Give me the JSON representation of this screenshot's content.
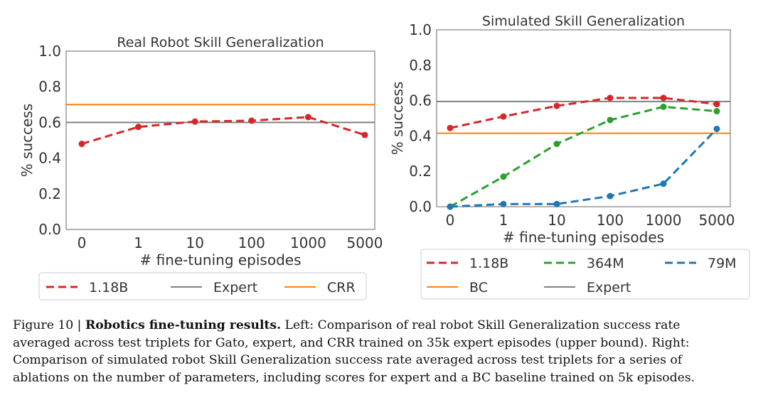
{
  "chart_data": [
    {
      "type": "line",
      "title": "Real Robot Skill Generalization",
      "xlabel": "# fine-tuning episodes",
      "ylabel": "% success",
      "categories": [
        "0",
        "1",
        "10",
        "100",
        "1000",
        "5000"
      ],
      "yticks": [
        "0.0",
        "0.2",
        "0.4",
        "0.6",
        "0.8",
        "1.0"
      ],
      "ylim": [
        0,
        1.0
      ],
      "grid": false,
      "series": [
        {
          "name": "1.18B",
          "color": "#d62728",
          "style": "dashed",
          "values": [
            0.48,
            0.575,
            0.605,
            0.61,
            0.63,
            0.53
          ]
        }
      ],
      "hlines": [
        {
          "name": "Expert",
          "color": "#7f7f7f",
          "value": 0.6
        },
        {
          "name": "CRR",
          "color": "#ff7f0e",
          "value": 0.7
        }
      ],
      "legend": [
        "1.18B",
        "Expert",
        "CRR"
      ],
      "legend_placement": "bottom"
    },
    {
      "type": "line",
      "title": "Simulated Skill Generalization",
      "xlabel": "# fine-tuning episodes",
      "ylabel": "% success",
      "categories": [
        "0",
        "1",
        "10",
        "100",
        "1000",
        "5000"
      ],
      "yticks": [
        "0.0",
        "0.2",
        "0.4",
        "0.6",
        "0.8",
        "1.0"
      ],
      "ylim": [
        0,
        1.0
      ],
      "grid": false,
      "series": [
        {
          "name": "1.18B",
          "color": "#d62728",
          "style": "dashed",
          "values": [
            0.445,
            0.51,
            0.57,
            0.615,
            0.615,
            0.58
          ]
        },
        {
          "name": "364M",
          "color": "#2ca02c",
          "style": "dashed",
          "values": [
            0.0,
            0.17,
            0.355,
            0.49,
            0.565,
            0.54
          ]
        },
        {
          "name": "79M",
          "color": "#1f77b4",
          "style": "dashed",
          "values": [
            0.0,
            0.015,
            0.015,
            0.06,
            0.13,
            0.44
          ]
        }
      ],
      "hlines": [
        {
          "name": "BC",
          "color": "#ff7f0e",
          "value": 0.415
        },
        {
          "name": "Expert",
          "color": "#7f7f7f",
          "value": 0.595
        }
      ],
      "legend": [
        "1.18B",
        "364M",
        "79M",
        "BC",
        "Expert"
      ],
      "legend_placement": "bottom"
    }
  ],
  "caption": {
    "lines": [
      {
        "prefix": "Figure 10 | ",
        "bold": "Robotics fine-tuning results.",
        "text": " Left: Comparison of real robot Skill Generalization success rate"
      },
      {
        "text": "averaged across test triplets for Gato, expert, and CRR trained on 35k expert episodes (upper bound). Right:"
      },
      {
        "text": "Comparison of simulated robot Skill Generalization success rate averaged across test triplets for a series of"
      },
      {
        "text": "ablations on the number of parameters, including scores for expert and a BC baseline trained on 5k episodes."
      }
    ]
  }
}
